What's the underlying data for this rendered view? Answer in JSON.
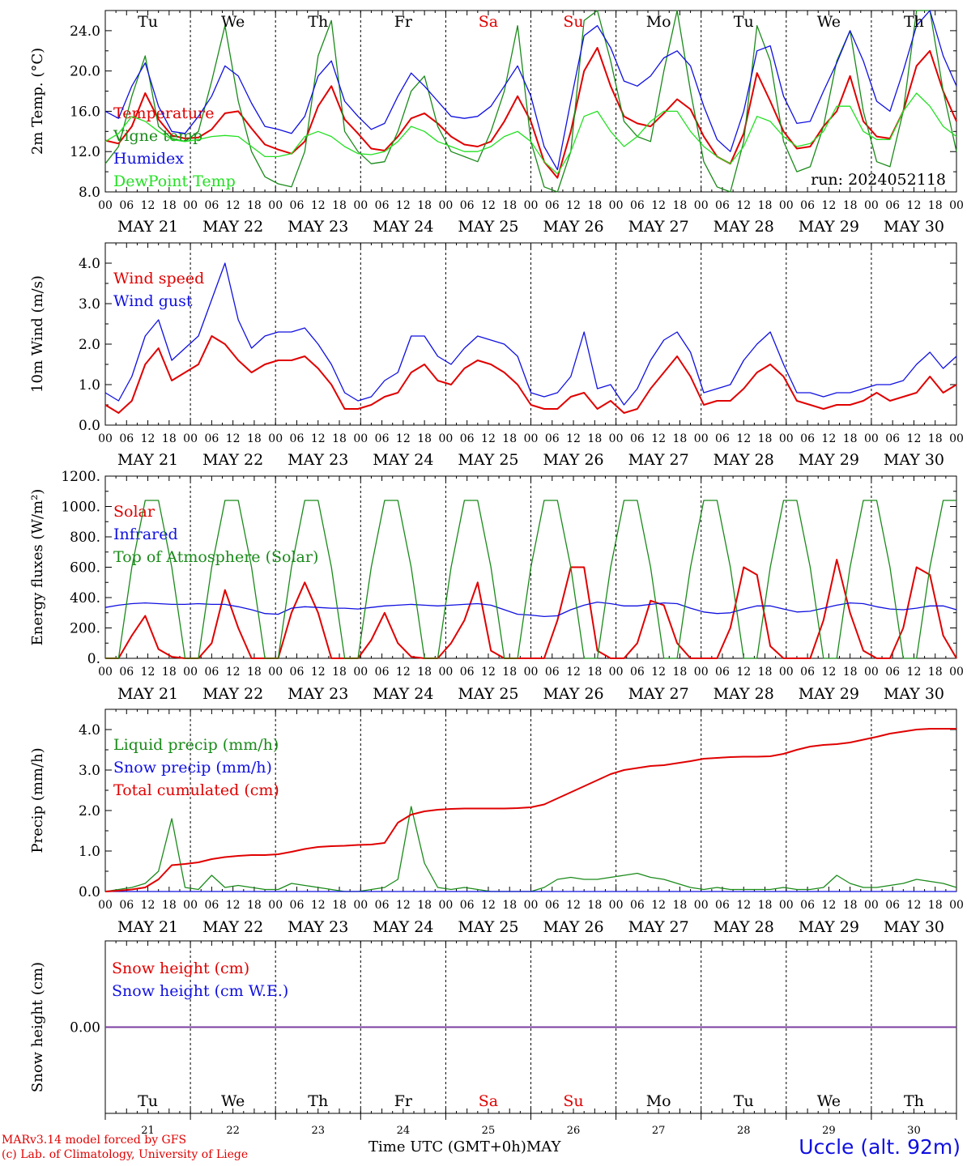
{
  "footer": {
    "model_line1": "MARv3.14 model forced by GFS",
    "model_line2": "(c) Lab. of Climatology, University of Liege",
    "xlabel": "Time UTC (GMT+0h)",
    "month": "MAY",
    "station": "Uccle (alt. 92m)"
  },
  "run_label": "run: 2024052118",
  "colors": {
    "red": "#e00000",
    "green": "#1a8a1a",
    "blue": "#1010e0",
    "lightgreen": "#22e022",
    "purple": "#7b3fa0",
    "grid": "#000000"
  },
  "days": {
    "weekday": [
      "Tu",
      "We",
      "Th",
      "Fr",
      "Sa",
      "Su",
      "Mo",
      "Tu",
      "We",
      "Th"
    ],
    "weekday_weekend": [
      false,
      false,
      false,
      false,
      true,
      true,
      false,
      false,
      false,
      false
    ],
    "dates": [
      "MAY 21",
      "MAY 22",
      "MAY 23",
      "MAY 24",
      "MAY 25",
      "MAY 26",
      "MAY 27",
      "MAY 28",
      "MAY 29",
      "MAY 30"
    ],
    "day_numbers": [
      "21",
      "22",
      "23",
      "24",
      "25",
      "26",
      "27",
      "28",
      "29",
      "30"
    ],
    "hour_ticks": [
      "00",
      "06",
      "12",
      "18"
    ],
    "final_hour": "00"
  },
  "chart_data": [
    {
      "type": "line",
      "ylabel": "2m Temp. (°C)",
      "ylim": [
        8,
        26
      ],
      "yticks": [
        "8.0",
        "12.0",
        "16.0",
        "20.0",
        "24.0"
      ],
      "x_unit": "hours since 2024-05-21 00 UTC (3-hourly)",
      "series": [
        {
          "name": "Temperature",
          "color": "red",
          "values": [
            13.1,
            12.8,
            14.5,
            17.8,
            15.2,
            13.6,
            13.3,
            13.4,
            14.2,
            15.8,
            16.0,
            14.3,
            12.7,
            12.2,
            11.8,
            13.0,
            16.5,
            18.5,
            15.2,
            13.8,
            12.3,
            12.1,
            13.5,
            15.3,
            15.8,
            14.8,
            13.5,
            12.7,
            12.5,
            13.0,
            15.0,
            17.5,
            15.0,
            11.0,
            9.4,
            14.0,
            20.0,
            22.3,
            18.5,
            15.5,
            14.8,
            14.5,
            15.8,
            17.2,
            16.2,
            13.5,
            11.5,
            10.8,
            13.8,
            19.8,
            17.0,
            14.0,
            12.3,
            12.5,
            14.5,
            16.0,
            19.5,
            15.0,
            13.5,
            13.3,
            16.0,
            20.5,
            22.0,
            18.0,
            15.0
          ]
        },
        {
          "name": "Vigne temp",
          "color": "green",
          "values": [
            10.8,
            12.5,
            17.5,
            21.5,
            14.5,
            13.3,
            13.0,
            14.0,
            19.0,
            24.5,
            17.0,
            12.0,
            9.5,
            8.8,
            8.5,
            12.0,
            21.5,
            25.0,
            14.0,
            12.0,
            10.8,
            11.0,
            14.0,
            18.0,
            19.5,
            14.5,
            12.0,
            11.5,
            11.0,
            14.0,
            18.0,
            24.5,
            13.0,
            8.5,
            6.5,
            12.0,
            25.0,
            30.0,
            21.0,
            15.0,
            13.5,
            13.0,
            20.0,
            26.0,
            18.0,
            11.0,
            8.5,
            7.5,
            13.0,
            24.5,
            21.0,
            13.0,
            10.0,
            10.5,
            14.5,
            21.0,
            24.0,
            16.0,
            11.0,
            10.5,
            16.0,
            26.0,
            29.0,
            18.0,
            12.0
          ]
        },
        {
          "name": "Humidex",
          "color": "blue",
          "values": [
            16.0,
            15.3,
            18.5,
            20.8,
            16.5,
            14.0,
            13.8,
            15.5,
            17.5,
            20.5,
            19.5,
            16.8,
            14.5,
            14.2,
            13.8,
            15.5,
            19.5,
            21.0,
            17.0,
            15.5,
            14.2,
            14.8,
            17.5,
            19.8,
            18.5,
            17.0,
            15.5,
            15.3,
            15.5,
            16.5,
            18.5,
            20.5,
            17.5,
            12.5,
            10.2,
            17.0,
            23.5,
            24.5,
            22.3,
            19.0,
            18.5,
            19.5,
            21.3,
            22.0,
            20.5,
            16.5,
            13.2,
            12.0,
            16.0,
            22.0,
            22.5,
            17.5,
            14.8,
            15.0,
            18.0,
            20.8,
            24.0,
            21.0,
            17.0,
            16.0,
            20.0,
            24.5,
            26.0,
            21.5,
            18.5
          ]
        },
        {
          "name": "DewPoint Temp",
          "color": "lightgreen",
          "values": [
            13.0,
            13.8,
            15.5,
            15.0,
            14.0,
            13.2,
            13.0,
            13.2,
            13.5,
            13.6,
            13.5,
            12.5,
            11.5,
            11.5,
            11.8,
            13.5,
            14.0,
            13.5,
            12.5,
            11.8,
            11.7,
            12.0,
            13.0,
            14.5,
            14.0,
            13.0,
            12.5,
            12.0,
            12.0,
            12.5,
            13.5,
            14.0,
            13.0,
            11.0,
            9.8,
            12.0,
            15.5,
            16.0,
            14.0,
            12.5,
            13.5,
            15.0,
            16.0,
            16.0,
            14.0,
            12.5,
            11.5,
            10.8,
            12.5,
            15.5,
            15.0,
            13.5,
            12.5,
            12.8,
            14.0,
            16.5,
            16.5,
            14.0,
            13.2,
            13.2,
            16.0,
            17.8,
            16.5,
            14.5,
            13.5
          ]
        }
      ]
    },
    {
      "type": "line",
      "ylabel": "10m Wind (m/s)",
      "ylim": [
        0,
        4.5
      ],
      "yticks": [
        "0.0",
        "1.0",
        "2.0",
        "3.0",
        "4.0"
      ],
      "series": [
        {
          "name": "Wind speed",
          "color": "red",
          "values": [
            0.5,
            0.3,
            0.6,
            1.5,
            1.9,
            1.1,
            1.3,
            1.5,
            2.2,
            2.0,
            1.6,
            1.3,
            1.5,
            1.6,
            1.6,
            1.7,
            1.4,
            1.0,
            0.4,
            0.4,
            0.5,
            0.7,
            0.8,
            1.3,
            1.5,
            1.1,
            1.0,
            1.4,
            1.6,
            1.5,
            1.3,
            1.0,
            0.5,
            0.4,
            0.4,
            0.7,
            0.8,
            0.4,
            0.6,
            0.3,
            0.4,
            0.9,
            1.3,
            1.7,
            1.2,
            0.5,
            0.6,
            0.6,
            0.9,
            1.3,
            1.5,
            1.2,
            0.6,
            0.5,
            0.4,
            0.5,
            0.5,
            0.6,
            0.8,
            0.6,
            0.7,
            0.8,
            1.2,
            0.8,
            1.0
          ]
        },
        {
          "name": "Wind gust",
          "color": "blue",
          "values": [
            0.8,
            0.6,
            1.2,
            2.2,
            2.6,
            1.6,
            1.9,
            2.2,
            3.1,
            4.0,
            2.6,
            1.9,
            2.2,
            2.3,
            2.3,
            2.4,
            2.0,
            1.5,
            0.8,
            0.6,
            0.7,
            1.1,
            1.3,
            2.2,
            2.2,
            1.7,
            1.5,
            1.9,
            2.2,
            2.1,
            2.0,
            1.7,
            0.8,
            0.7,
            0.8,
            1.2,
            2.3,
            0.9,
            1.0,
            0.5,
            0.9,
            1.6,
            2.1,
            2.3,
            1.8,
            0.8,
            0.9,
            1.0,
            1.6,
            2.0,
            2.3,
            1.5,
            0.8,
            0.8,
            0.7,
            0.8,
            0.8,
            0.9,
            1.0,
            1.0,
            1.1,
            1.5,
            1.8,
            1.4,
            1.7
          ]
        }
      ]
    },
    {
      "type": "line",
      "ylabel": "Energy fluxes (W/m²)",
      "ylim": [
        0,
        1200
      ],
      "yticks": [
        "0.",
        "200.",
        "400.",
        "600.",
        "800.",
        "1000.",
        "1200."
      ],
      "series": [
        {
          "name": "Solar",
          "color": "red",
          "values": [
            0,
            0,
            150,
            280,
            60,
            10,
            0,
            0,
            100,
            450,
            200,
            0,
            0,
            0,
            300,
            500,
            300,
            0,
            0,
            0,
            120,
            300,
            100,
            10,
            0,
            0,
            100,
            250,
            500,
            50,
            0,
            0,
            0,
            0,
            250,
            600,
            600,
            50,
            0,
            0,
            100,
            380,
            350,
            100,
            0,
            0,
            0,
            200,
            600,
            550,
            80,
            0,
            0,
            0,
            250,
            650,
            300,
            50,
            0,
            0,
            200,
            600,
            550,
            150,
            0
          ]
        },
        {
          "name": "Infrared",
          "color": "blue",
          "values": [
            335,
            350,
            360,
            365,
            360,
            355,
            355,
            360,
            355,
            355,
            340,
            320,
            295,
            290,
            330,
            340,
            335,
            330,
            330,
            325,
            335,
            345,
            350,
            355,
            350,
            345,
            350,
            355,
            360,
            350,
            320,
            290,
            285,
            275,
            280,
            320,
            350,
            370,
            360,
            345,
            345,
            355,
            365,
            360,
            330,
            305,
            295,
            300,
            325,
            345,
            345,
            325,
            305,
            310,
            330,
            350,
            365,
            360,
            340,
            325,
            320,
            330,
            345,
            345,
            320
          ]
        },
        {
          "name": "Top of Atmosphere (Solar)",
          "color": "green",
          "values": [
            0,
            0,
            600,
            1040,
            1040,
            600,
            0,
            0,
            600,
            1040,
            1040,
            600,
            0,
            0,
            600,
            1040,
            1040,
            600,
            0,
            0,
            600,
            1040,
            1040,
            600,
            0,
            0,
            600,
            1040,
            1040,
            600,
            0,
            0,
            600,
            1040,
            1040,
            600,
            0,
            0,
            600,
            1040,
            1040,
            600,
            0,
            0,
            600,
            1040,
            1040,
            600,
            0,
            0,
            600,
            1040,
            1040,
            600,
            0,
            0,
            600,
            1040,
            1040,
            600,
            0,
            0,
            600,
            1040,
            1040
          ]
        }
      ]
    },
    {
      "type": "line",
      "ylabel": "Precip (mm/h)",
      "ylim": [
        0,
        4.5
      ],
      "yticks": [
        "0.0",
        "1.0",
        "2.0",
        "3.0",
        "4.0"
      ],
      "series": [
        {
          "name": "Liquid precip (mm/h)",
          "color": "green",
          "values": [
            0,
            0.05,
            0.1,
            0.2,
            0.5,
            1.8,
            0.1,
            0.05,
            0.4,
            0.1,
            0.15,
            0.1,
            0.05,
            0.05,
            0.2,
            0.15,
            0.1,
            0.05,
            0,
            0,
            0.05,
            0.1,
            0.3,
            2.1,
            0.7,
            0.1,
            0.05,
            0.1,
            0.05,
            0,
            0,
            0,
            0,
            0.1,
            0.3,
            0.35,
            0.3,
            0.3,
            0.35,
            0.4,
            0.45,
            0.35,
            0.3,
            0.2,
            0.1,
            0.05,
            0.1,
            0.05,
            0.05,
            0.05,
            0.05,
            0.1,
            0.05,
            0.05,
            0.1,
            0.4,
            0.2,
            0.1,
            0.1,
            0.15,
            0.2,
            0.3,
            0.25,
            0.2,
            0.1
          ]
        },
        {
          "name": "Snow precip (mm/h)",
          "color": "blue",
          "values": [
            0,
            0,
            0,
            0,
            0,
            0,
            0,
            0,
            0,
            0,
            0,
            0,
            0,
            0,
            0,
            0,
            0,
            0,
            0,
            0,
            0,
            0,
            0,
            0,
            0,
            0,
            0,
            0,
            0,
            0,
            0,
            0,
            0,
            0,
            0,
            0,
            0,
            0,
            0,
            0,
            0,
            0,
            0,
            0,
            0,
            0,
            0,
            0,
            0,
            0,
            0,
            0,
            0,
            0,
            0,
            0,
            0,
            0,
            0,
            0,
            0,
            0,
            0,
            0,
            0
          ]
        },
        {
          "name": "Total cumulated (cm)",
          "color": "red",
          "values": [
            0,
            0.02,
            0.05,
            0.1,
            0.3,
            0.65,
            0.68,
            0.72,
            0.8,
            0.85,
            0.88,
            0.9,
            0.9,
            0.92,
            0.98,
            1.05,
            1.1,
            1.12,
            1.13,
            1.15,
            1.16,
            1.2,
            1.7,
            1.9,
            1.98,
            2.02,
            2.04,
            2.05,
            2.05,
            2.05,
            2.05,
            2.06,
            2.08,
            2.15,
            2.3,
            2.45,
            2.6,
            2.75,
            2.9,
            3.0,
            3.05,
            3.1,
            3.12,
            3.17,
            3.22,
            3.28,
            3.3,
            3.32,
            3.33,
            3.33,
            3.34,
            3.4,
            3.5,
            3.58,
            3.62,
            3.64,
            3.68,
            3.75,
            3.82,
            3.9,
            3.95,
            4.0,
            4.02,
            4.02,
            4.02
          ]
        }
      ]
    },
    {
      "type": "line",
      "ylabel": "Snow height (cm)",
      "ylim": [
        -1,
        1
      ],
      "yticks": [
        "0.00"
      ],
      "series": [
        {
          "name": "Snow height (cm)",
          "color": "red",
          "values": [
            0,
            0
          ]
        },
        {
          "name": "Snow height (cm W.E.)",
          "color": "blue",
          "values": [
            0,
            0
          ]
        }
      ]
    }
  ]
}
